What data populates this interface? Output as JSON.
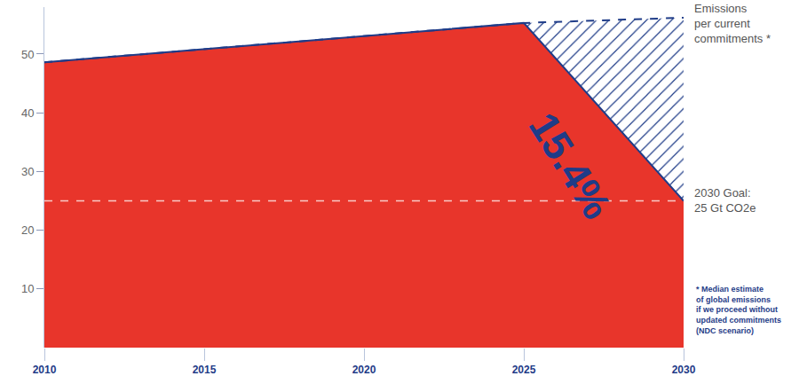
{
  "chart_data": {
    "type": "area",
    "x": [
      2010,
      2015,
      2020,
      2025,
      2030
    ],
    "series": [
      {
        "values": [
          48.6,
          50.8,
          53.0,
          55.3,
          25.0
        ],
        "color": "#e8352b",
        "line_style": "solid"
      },
      {
        "name": "Emissions\nper current\ncommitments *",
        "values": [
          48.6,
          50.8,
          53.0,
          55.3,
          56.2
        ],
        "color": "#1f3c88",
        "line_style": "dashed"
      }
    ],
    "goal": {
      "value": 25,
      "label": "2030 Goal:\n25 Gt CO2e"
    },
    "annotations": [
      "15.4%",
      "* Median estimate\nof global emissions\nif we proceed without\nupdated commitments\n(NDC scenario)"
    ],
    "xlim": [
      2010,
      2030
    ],
    "xticks": [
      2010,
      2015,
      2020,
      2025,
      2030
    ],
    "ylim": [
      0,
      58
    ],
    "yticks": [
      10,
      20,
      30,
      40,
      50
    ],
    "grid": false
  }
}
